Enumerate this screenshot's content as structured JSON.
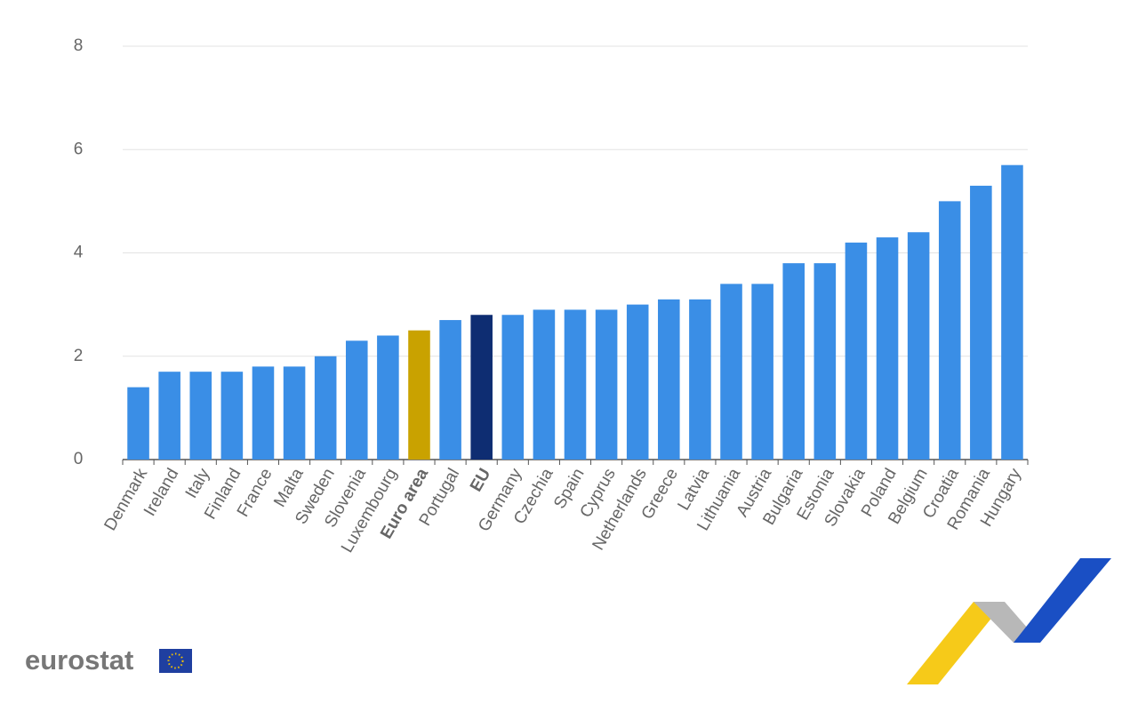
{
  "chart_data": {
    "type": "bar",
    "categories": [
      "Denmark",
      "Ireland",
      "Italy",
      "Finland",
      "France",
      "Malta",
      "Sweden",
      "Slovenia",
      "Luxembourg",
      "Euro area",
      "Portugal",
      "EU",
      "Germany",
      "Czechia",
      "Spain",
      "Cyprus",
      "Netherlands",
      "Greece",
      "Latvia",
      "Lithuania",
      "Austria",
      "Bulgaria",
      "Estonia",
      "Slovakia",
      "Poland",
      "Belgium",
      "Croatia",
      "Romania",
      "Hungary"
    ],
    "values": [
      1.4,
      1.7,
      1.7,
      1.7,
      1.8,
      1.8,
      2.0,
      2.3,
      2.4,
      2.5,
      2.7,
      2.8,
      2.8,
      2.9,
      2.9,
      2.9,
      3.0,
      3.1,
      3.1,
      3.4,
      3.4,
      3.8,
      3.8,
      4.2,
      4.3,
      4.4,
      5.0,
      5.3,
      5.7
    ],
    "color": "#3a8ee6",
    "colors": [
      "#3a8ee6",
      "#3a8ee6",
      "#3a8ee6",
      "#3a8ee6",
      "#3a8ee6",
      "#3a8ee6",
      "#3a8ee6",
      "#3a8ee6",
      "#3a8ee6",
      "#c9a200",
      "#3a8ee6",
      "#0e2d72",
      "#3a8ee6",
      "#3a8ee6",
      "#3a8ee6",
      "#3a8ee6",
      "#3a8ee6",
      "#3a8ee6",
      "#3a8ee6",
      "#3a8ee6",
      "#3a8ee6",
      "#3a8ee6",
      "#3a8ee6",
      "#3a8ee6",
      "#3a8ee6",
      "#3a8ee6",
      "#3a8ee6",
      "#3a8ee6",
      "#3a8ee6"
    ],
    "ylim": [
      0,
      8
    ],
    "yticks": [
      0,
      2,
      4,
      6,
      8
    ],
    "grid": true
  },
  "logo_text": "eurostat"
}
